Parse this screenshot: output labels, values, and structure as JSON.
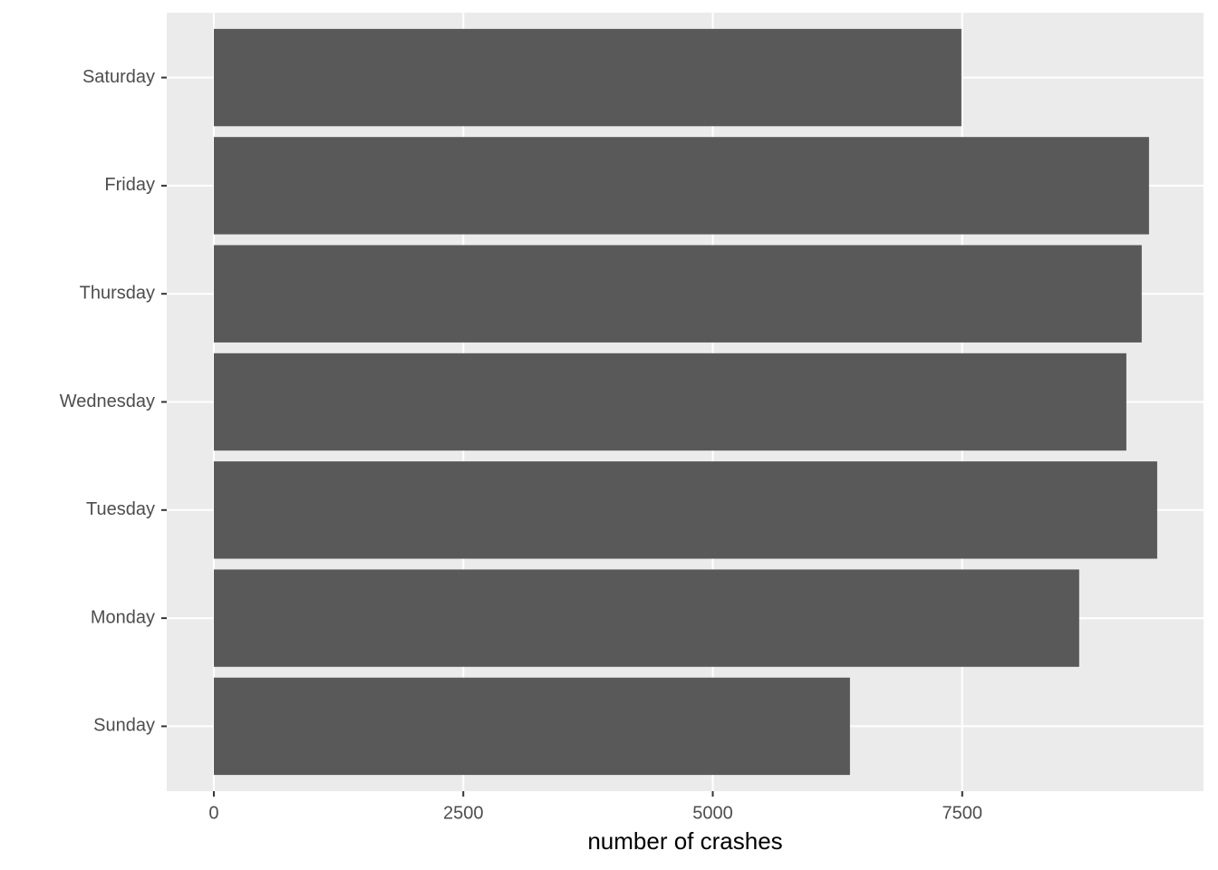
{
  "chart_data": {
    "type": "hbar",
    "x_label": "number of crashes",
    "categories": [
      "Saturday",
      "Friday",
      "Thursday",
      "Wednesday",
      "Tuesday",
      "Monday",
      "Sunday"
    ],
    "values": [
      7492,
      9372,
      9299,
      9145,
      9454,
      8672,
      6375
    ],
    "color": "#595959",
    "background": "#ebebeb",
    "grid": true,
    "xlim": [
      -472,
      9918
    ],
    "xticks": [
      0,
      2500,
      5000,
      7500
    ]
  }
}
